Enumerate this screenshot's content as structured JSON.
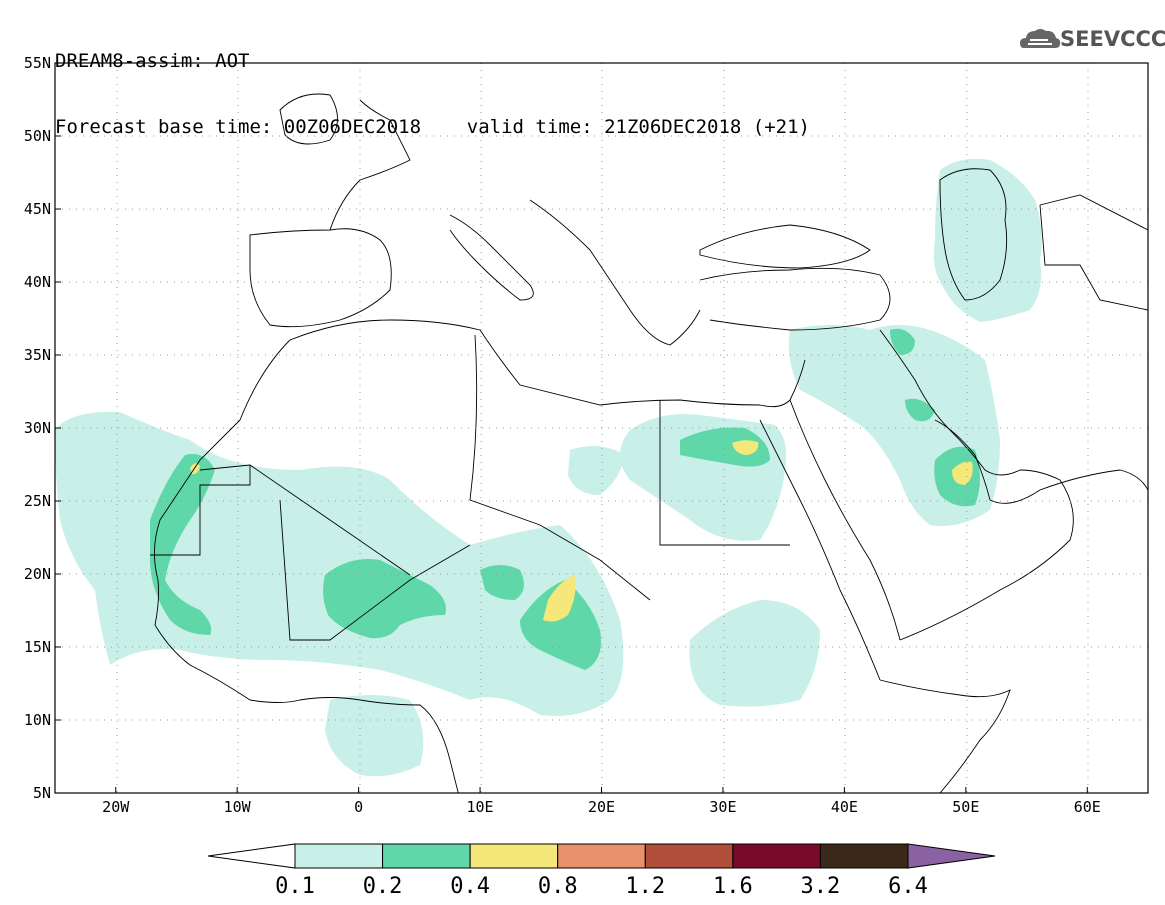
{
  "header": {
    "line1": "DREAM8-assim: AOT",
    "line2": "Forecast base time: 00Z06DEC2018    valid time: 21Z06DEC2018 (+21)"
  },
  "logo": {
    "text": "SEEVCCC",
    "icon": "cloud-logo-icon"
  },
  "map": {
    "lon_range": [
      -25,
      65
    ],
    "lat_range": [
      5,
      55
    ],
    "lat_ticks": [
      {
        "value": 55,
        "label": "55N"
      },
      {
        "value": 50,
        "label": "50N"
      },
      {
        "value": 45,
        "label": "45N"
      },
      {
        "value": 40,
        "label": "40N"
      },
      {
        "value": 35,
        "label": "35N"
      },
      {
        "value": 30,
        "label": "30N"
      },
      {
        "value": 25,
        "label": "25N"
      },
      {
        "value": 20,
        "label": "20N"
      },
      {
        "value": 15,
        "label": "15N"
      },
      {
        "value": 10,
        "label": "10N"
      },
      {
        "value": 5,
        "label": "5N"
      }
    ],
    "lon_ticks": [
      {
        "value": -20,
        "label": "20W"
      },
      {
        "value": -10,
        "label": "10W"
      },
      {
        "value": 0,
        "label": "0"
      },
      {
        "value": 10,
        "label": "10E"
      },
      {
        "value": 20,
        "label": "20E"
      },
      {
        "value": 30,
        "label": "30E"
      },
      {
        "value": 40,
        "label": "40E"
      },
      {
        "value": 50,
        "label": "50E"
      },
      {
        "value": 60,
        "label": "60E"
      }
    ],
    "grid": "dotted"
  },
  "colorbar": {
    "labels": [
      "0.1",
      "0.2",
      "0.4",
      "0.8",
      "1.2",
      "1.6",
      "3.2",
      "6.4"
    ],
    "colors": [
      "#ffffff",
      "#c8f0e8",
      "#5fd7a8",
      "#f5e87a",
      "#e8916a",
      "#b0503c",
      "#7a0a2a",
      "#3a2818",
      "#8a62a2"
    ]
  },
  "fields": {
    "level1_color": "#c8f0e8",
    "level2_color": "#5fd7a8",
    "level3_color": "#f5e87a"
  }
}
